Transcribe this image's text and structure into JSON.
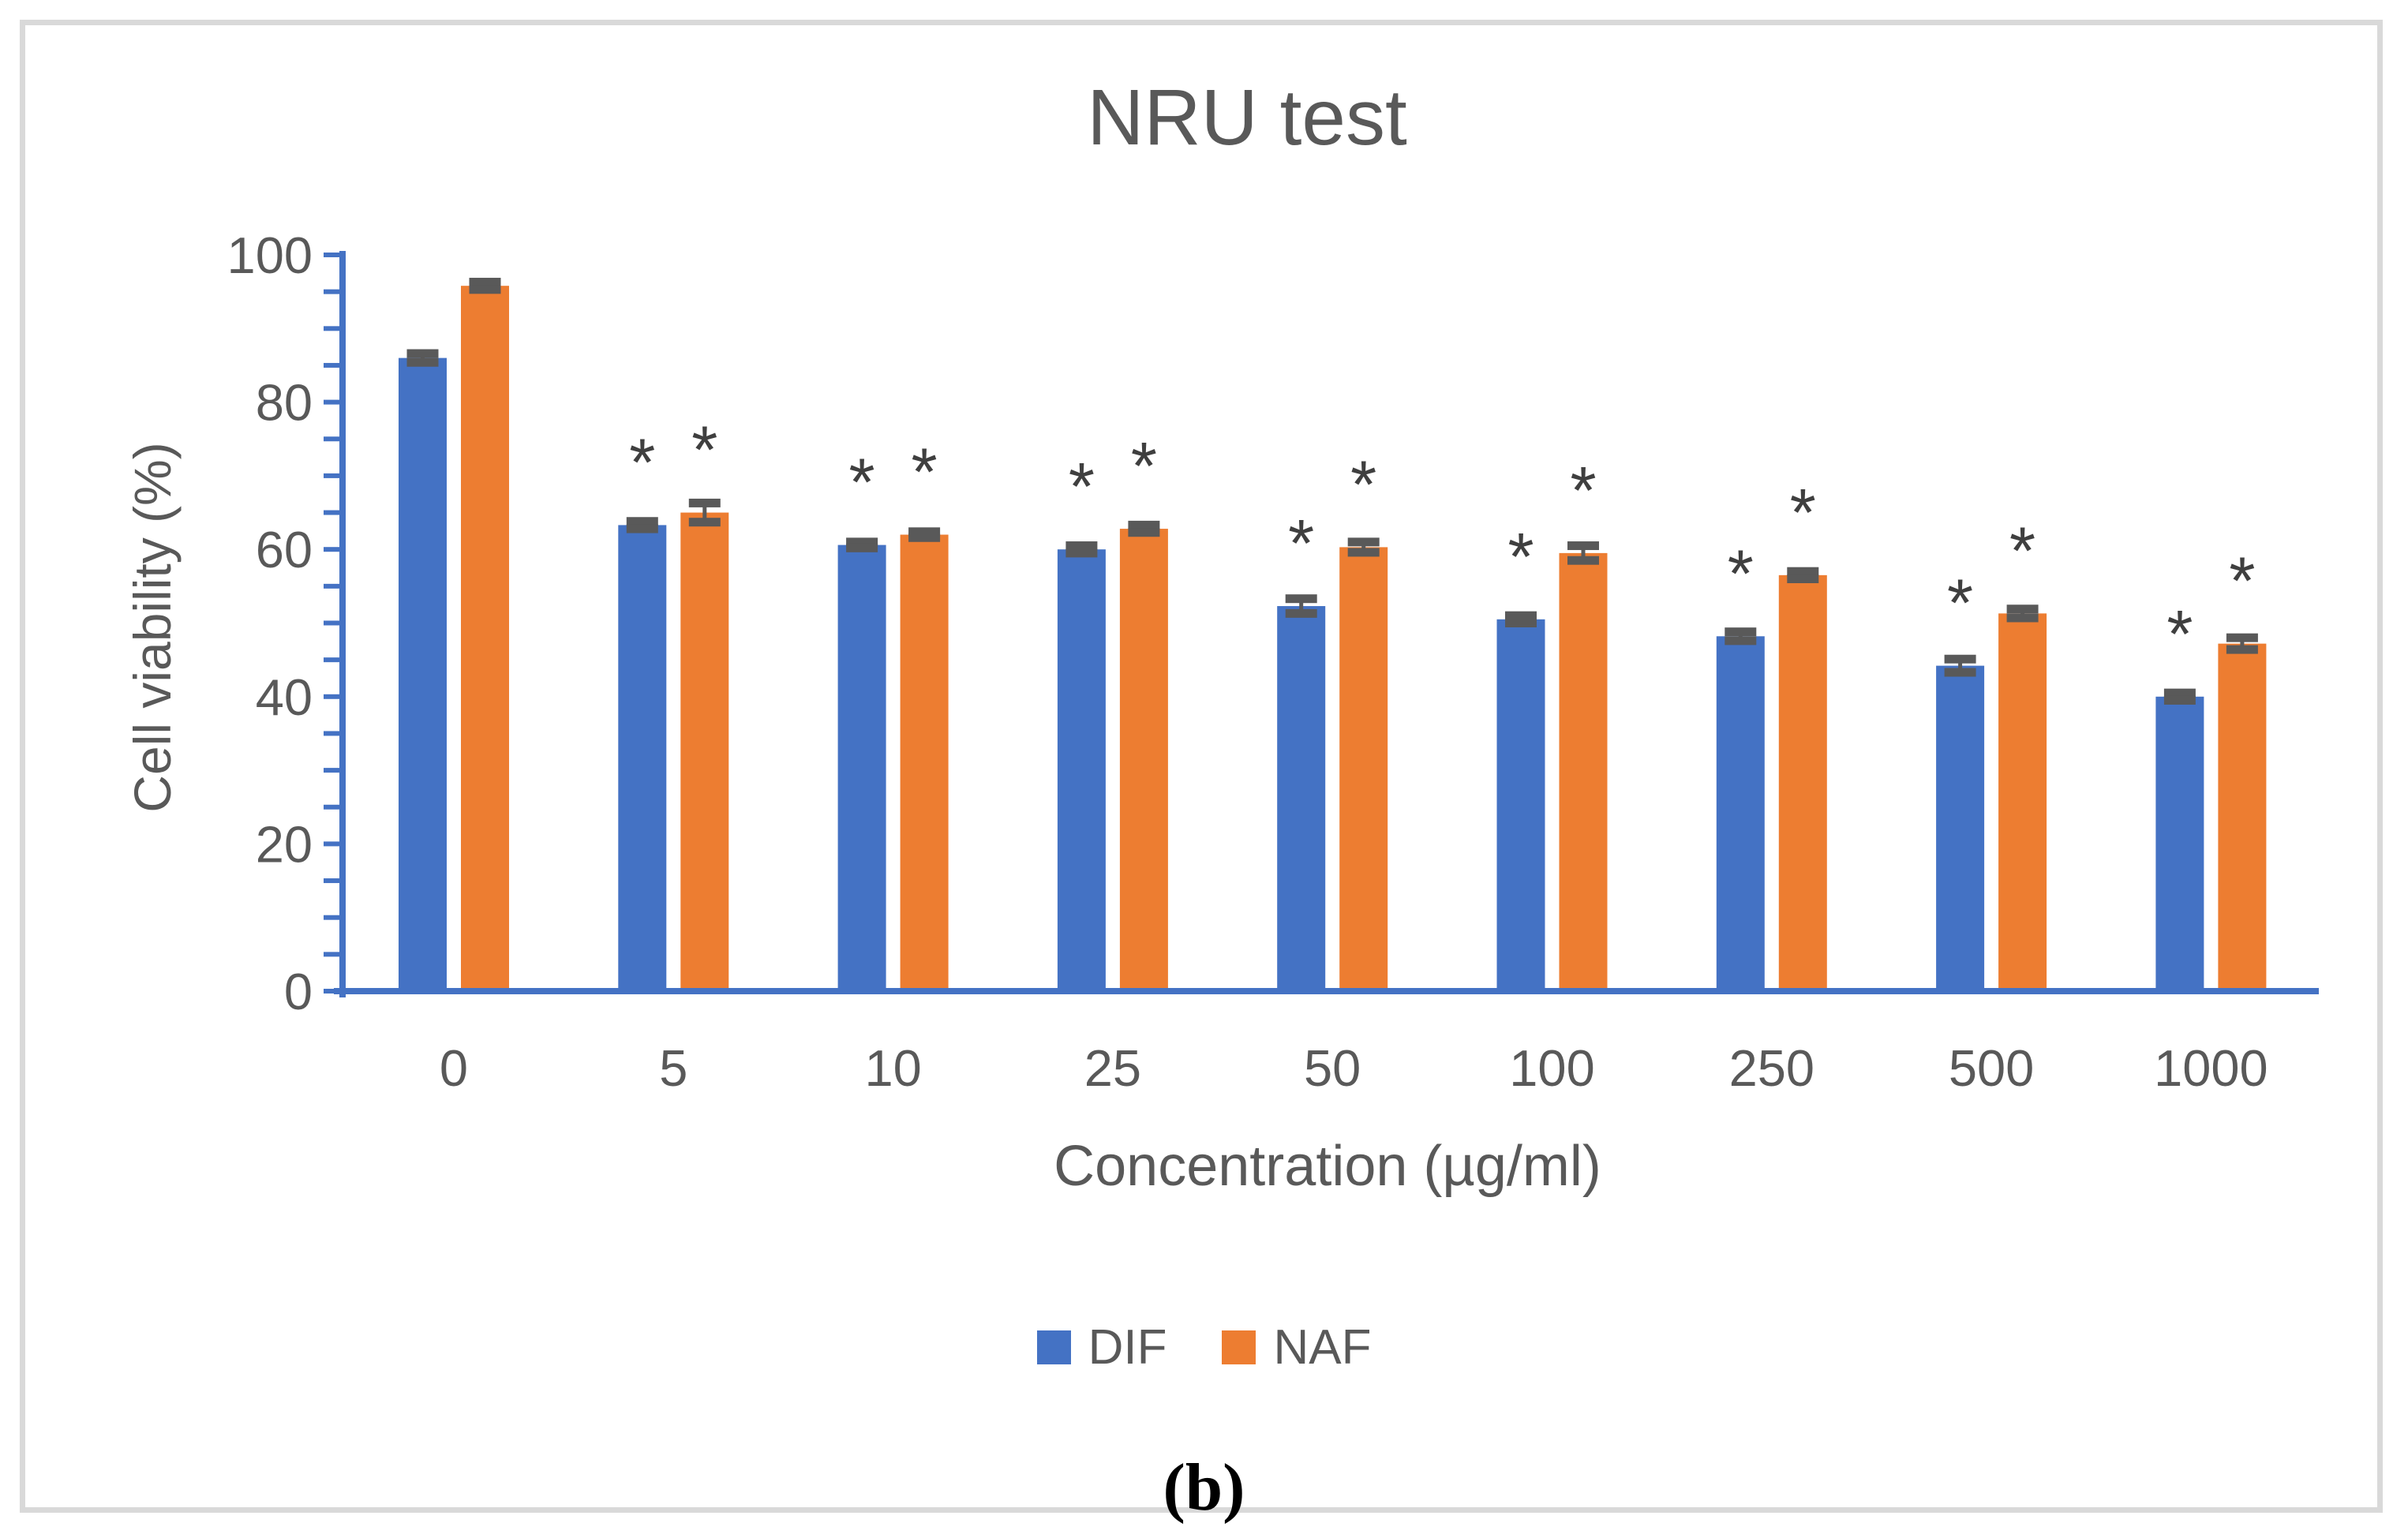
{
  "chart_data": {
    "type": "bar",
    "title": "NRU test",
    "xlabel": "Concentration (µg/ml)",
    "ylabel": "Cell viability (%)",
    "ylim": [
      0,
      100
    ],
    "y_major_ticks": [
      0,
      20,
      40,
      60,
      80,
      100
    ],
    "y_minor_tick_step": 5,
    "grid": false,
    "legend_position": "bottom",
    "significance_marker": "*",
    "categories": [
      "0",
      "5",
      "10",
      "25",
      "50",
      "100",
      "250",
      "500",
      "1000"
    ],
    "series": [
      {
        "name": "DIF",
        "color": "#4472C4",
        "values": [
          86,
          63.3,
          60.6,
          60,
          52.3,
          50.5,
          48.2,
          44.2,
          40
        ],
        "errors": [
          0.6,
          0.5,
          0.4,
          0.5,
          1.0,
          0.5,
          0.6,
          0.9,
          0.5
        ],
        "significant": [
          false,
          true,
          true,
          true,
          true,
          true,
          true,
          true,
          true
        ]
      },
      {
        "name": "NAF",
        "color": "#ED7D31",
        "values": [
          95.8,
          65,
          62,
          62.8,
          60.3,
          59.5,
          56.5,
          51.3,
          47.2
        ],
        "errors": [
          0.5,
          1.3,
          0.4,
          0.5,
          0.7,
          1.0,
          0.5,
          0.6,
          0.8
        ],
        "significant": [
          false,
          true,
          true,
          true,
          true,
          true,
          true,
          true,
          true
        ]
      }
    ],
    "colors": {
      "axis": "#4472C4",
      "text": "#595959",
      "error_bar": "#595959",
      "marker": "#3F3F3F",
      "border": "#D9D9D9"
    }
  },
  "figure": {
    "caption": "(b)"
  }
}
